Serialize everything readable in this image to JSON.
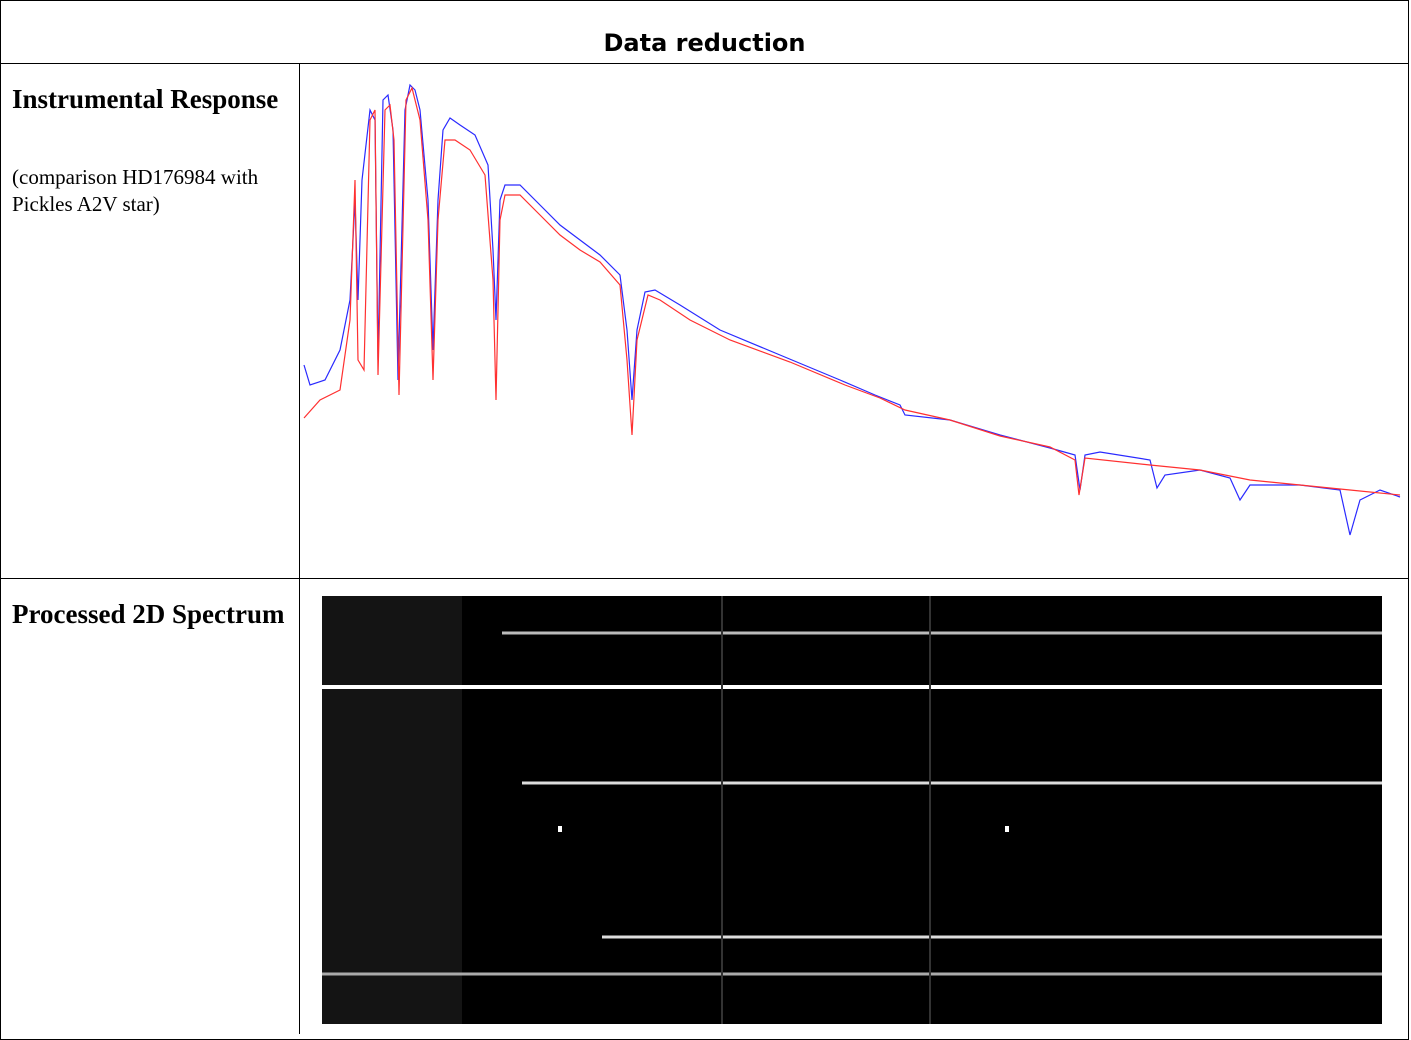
{
  "header": {
    "title": "Data reduction"
  },
  "rows": [
    {
      "label": "Instrumental Response",
      "note": "(comparison HD176984 with Pickles A2V star)"
    },
    {
      "label": "Processed 2D Spectrum"
    }
  ]
}
